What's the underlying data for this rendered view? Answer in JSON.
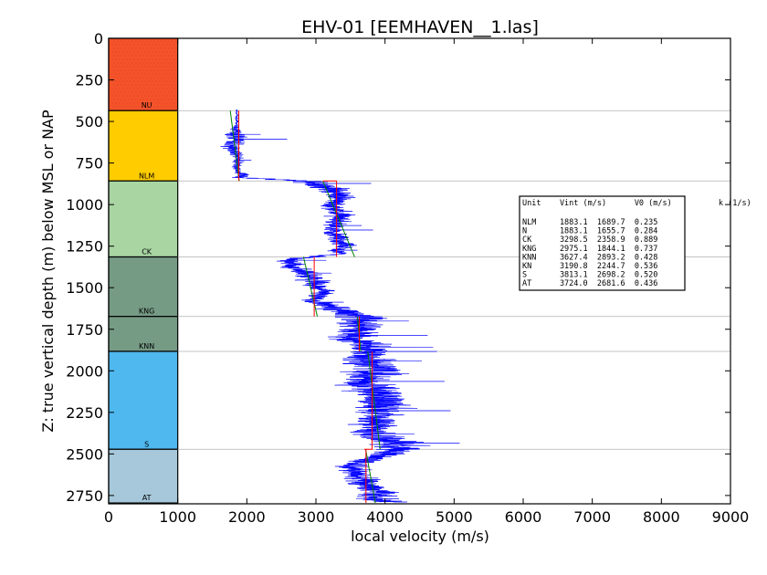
{
  "chart_data": {
    "type": "line",
    "title": "EHV-01 [EEMHAVEN__1.las]",
    "xlabel": "local velocity (m/s)",
    "ylabel": "Z: true vertical depth (m) below MSL or NAP",
    "xlim": [
      0,
      9000
    ],
    "ylim": [
      2800,
      0
    ],
    "xticks": [
      "0",
      "1000",
      "2000",
      "3000",
      "4000",
      "5000",
      "6000",
      "7000",
      "8000",
      "9000"
    ],
    "yticks": [
      "0",
      "250",
      "500",
      "750",
      "1000",
      "1250",
      "1500",
      "1750",
      "2000",
      "2250",
      "2500",
      "2750"
    ],
    "grid": "horizontal at unit boundaries",
    "units": [
      {
        "name": "NU",
        "top": 0,
        "base": 435,
        "color": "#f4532a"
      },
      {
        "name": "NLM",
        "top": 435,
        "base": 858,
        "color": "#ffcc00"
      },
      {
        "name": "CK",
        "top": 858,
        "base": 1315,
        "color": "#a8d5a2"
      },
      {
        "name": "KNG",
        "top": 1315,
        "base": 1673,
        "color": "#769b85"
      },
      {
        "name": "KNN",
        "top": 1673,
        "base": 1883,
        "color": "#769b85"
      },
      {
        "name": "S",
        "top": 1883,
        "base": 2472,
        "color": "#4fb8ef"
      },
      {
        "name": "AT",
        "top": 2472,
        "base": 2795,
        "color": "#a6c8da"
      }
    ],
    "series": [
      {
        "color": "#0000ff",
        "profile_depth": [
          430,
          520,
          600,
          640,
          680,
          720,
          760,
          800,
          840,
          860,
          900,
          940,
          980,
          1020,
          1060,
          1100,
          1150,
          1200,
          1250,
          1300,
          1330,
          1380,
          1430,
          1480,
          1530,
          1580,
          1640,
          1680,
          1720,
          1760,
          1800,
          1860,
          1920,
          1980,
          2050,
          2120,
          2200,
          2280,
          2360,
          2420,
          2470,
          2520,
          2580,
          2640,
          2700,
          2760,
          2790
        ],
        "profile_velocity": [
          1850,
          1850,
          1830,
          1820,
          1830,
          1860,
          1850,
          1880,
          2000,
          2900,
          3200,
          3350,
          3300,
          3250,
          3400,
          3300,
          3250,
          3300,
          3400,
          3300,
          2600,
          2700,
          2900,
          3000,
          3100,
          2950,
          3400,
          3650,
          3700,
          3600,
          3500,
          3800,
          3700,
          3900,
          3800,
          3850,
          4000,
          3900,
          3800,
          4100,
          4300,
          3900,
          3500,
          3600,
          3800,
          3900,
          4000
        ],
        "spread_velocity": [
          40,
          40,
          300,
          250,
          200,
          120,
          120,
          80,
          300,
          400,
          450,
          350,
          300,
          280,
          300,
          250,
          250,
          300,
          300,
          200,
          300,
          300,
          350,
          300,
          300,
          250,
          450,
          550,
          600,
          500,
          550,
          500,
          600,
          650,
          650,
          650,
          600,
          500,
          500,
          600,
          650,
          450,
          400,
          400,
          450,
          450,
          500
        ]
      }
    ],
    "trend_lines": [
      {
        "unit": "NLM",
        "v_top": 1760,
        "v_base": 1890
      },
      {
        "unit": "CK",
        "v_top": 3100,
        "v_base": 3560
      },
      {
        "unit": "KNG",
        "v_top": 2820,
        "v_base": 3020
      },
      {
        "unit": "KNN",
        "v_top": 3600,
        "v_base": 3650
      },
      {
        "unit": "S",
        "v_top": 3750,
        "v_base": 3930
      },
      {
        "unit": "AT",
        "v_top": 3720,
        "v_base": 3860
      }
    ],
    "interval_velocity": [
      {
        "unit": "NLM",
        "vint": 1883.1
      },
      {
        "unit": "CK",
        "vint": 3298.5
      },
      {
        "unit": "KNG",
        "vint": 2975.1
      },
      {
        "unit": "KNN",
        "vint": 3627.4
      },
      {
        "unit": "S",
        "vint": 3813.1
      },
      {
        "unit": "AT",
        "vint": 3724.0
      }
    ],
    "legend": {
      "placement": "right",
      "header": "Unit    Vint (m/s)      V0 (m/s)          k (1/s)",
      "rows": [
        "NLM     1883.1  1689.7  0.235",
        "N       1883.1  1655.7  0.284",
        "CK      3298.5  2358.9  0.889",
        "KNG     2975.1  1844.1  0.737",
        "KNN     3627.4  2893.2  0.428",
        "KN      3190.8  2244.7  0.536",
        "S       3813.1  2698.2  0.520",
        "AT      3724.0  2681.6  0.436"
      ]
    },
    "colors": {
      "velocity_log": "#0000ff",
      "trend": "#008000",
      "interval_velocity": "#ff0000",
      "grid": "#b0b0b0"
    }
  }
}
